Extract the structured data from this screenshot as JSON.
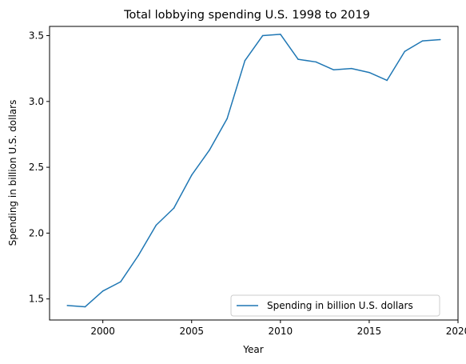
{
  "chart_data": {
    "type": "line",
    "title": "Total lobbying spending U.S. 1998 to 2019",
    "xlabel": "Year",
    "ylabel": "Spending in billion U.S. dollars",
    "xlim": [
      1997,
      2020
    ],
    "ylim": [
      1.34,
      3.57
    ],
    "xticks": [
      2000,
      2005,
      2010,
      2015,
      2020
    ],
    "yticks": [
      1.5,
      2.0,
      2.5,
      3.0,
      3.5
    ],
    "xtick_labels": [
      "2000",
      "2005",
      "2010",
      "2015",
      "2020"
    ],
    "ytick_labels": [
      "1.5",
      "2.0",
      "2.5",
      "3.0",
      "3.5"
    ],
    "grid": false,
    "legend_position": "lower-right",
    "series": [
      {
        "name": "Spending in billion U.S. dollars",
        "color": "#1f77b4",
        "x": [
          1998,
          1999,
          2000,
          2001,
          2002,
          2003,
          2004,
          2005,
          2006,
          2007,
          2008,
          2009,
          2010,
          2011,
          2012,
          2013,
          2014,
          2015,
          2016,
          2017,
          2018,
          2019
        ],
        "y": [
          1.45,
          1.44,
          1.56,
          1.63,
          1.83,
          2.06,
          2.19,
          2.44,
          2.63,
          2.87,
          3.31,
          3.5,
          3.51,
          3.32,
          3.3,
          3.24,
          3.25,
          3.22,
          3.16,
          3.38,
          3.46,
          3.47
        ]
      }
    ]
  }
}
